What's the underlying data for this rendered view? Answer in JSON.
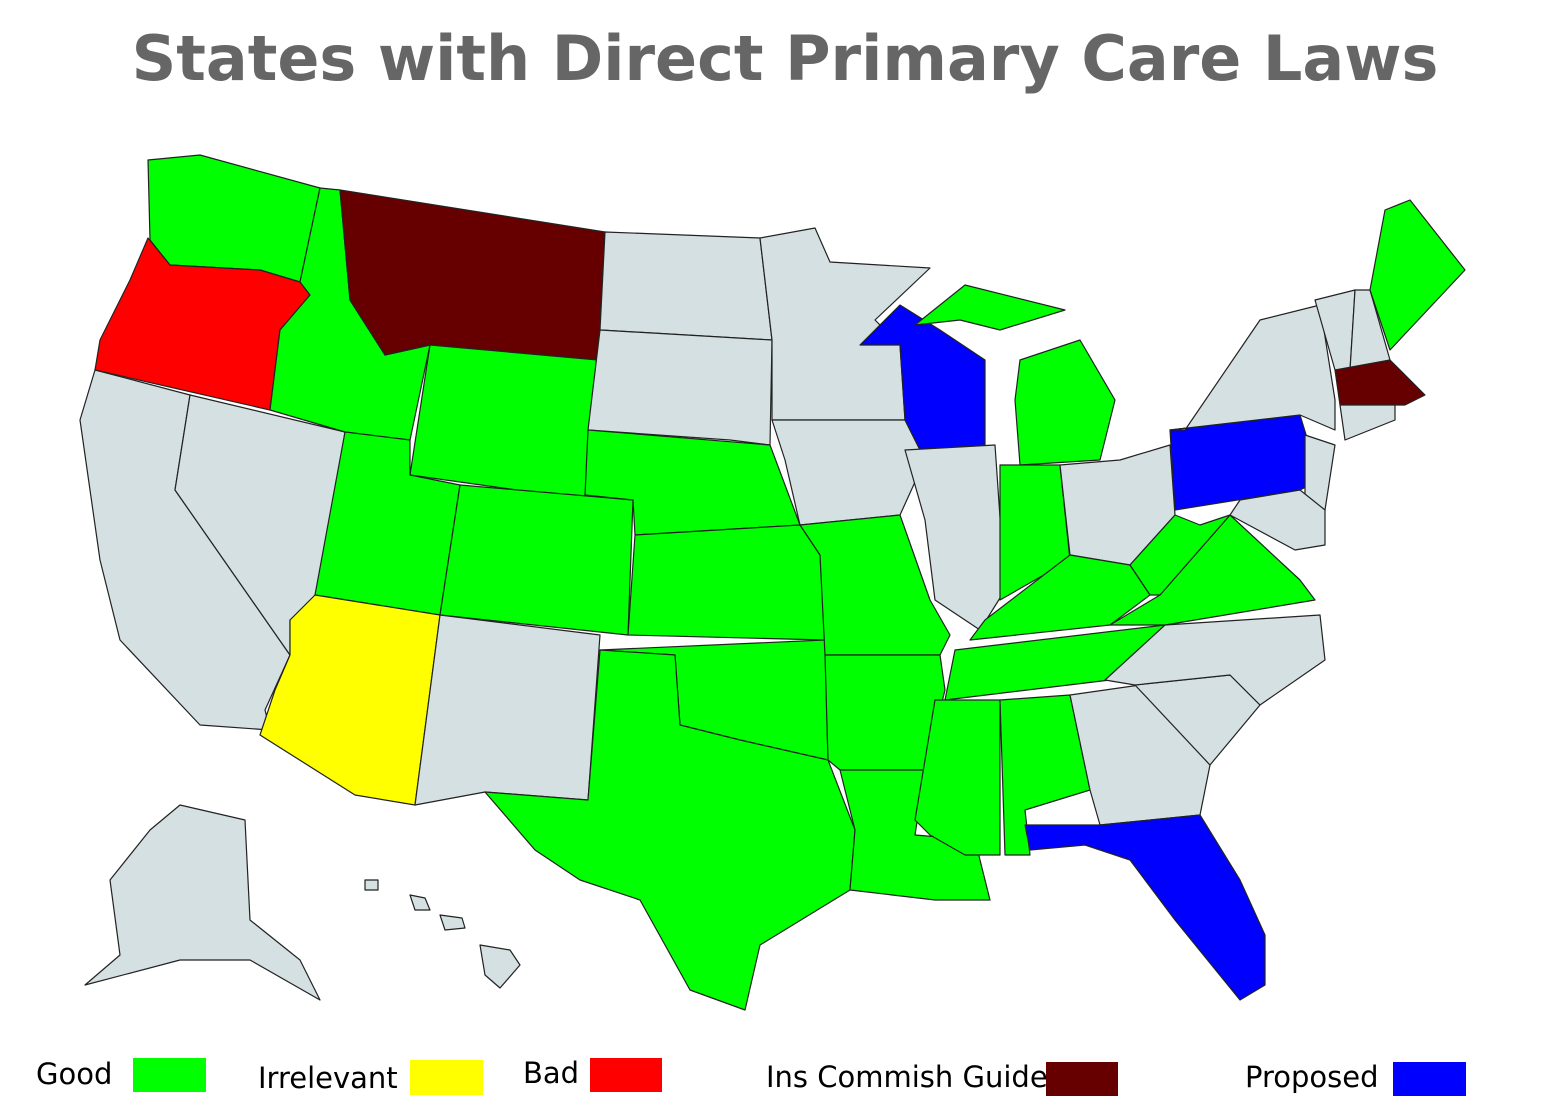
{
  "title": "States with Direct Primary Care Laws",
  "legend": [
    {
      "label": "Good",
      "color": "#00ff00"
    },
    {
      "label": "Irrelevant",
      "color": "#ffff00"
    },
    {
      "label": "Bad",
      "color": "#ff0000"
    },
    {
      "label": "Ins Commish Guide",
      "color": "#660000"
    },
    {
      "label": "Proposed",
      "color": "#0000ff"
    }
  ],
  "other_color": "#d4e0e2"
}
